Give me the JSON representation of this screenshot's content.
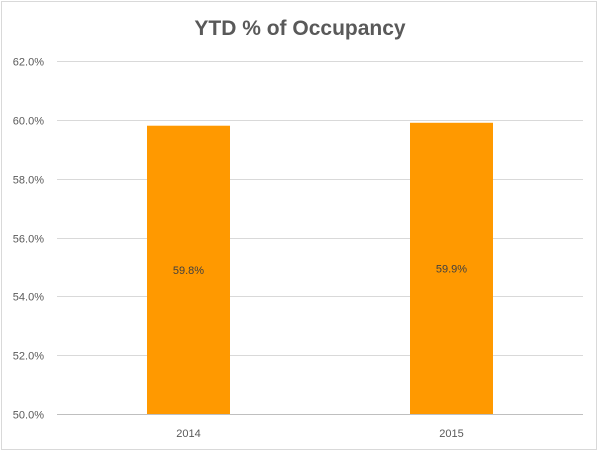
{
  "chart_data": {
    "type": "bar",
    "title": "YTD % of Occupancy",
    "categories": [
      "2014",
      "2015"
    ],
    "values": [
      59.8,
      59.9
    ],
    "data_labels": [
      "59.8%",
      "59.9%"
    ],
    "ylim": [
      50.0,
      62.0
    ],
    "yticks": [
      50.0,
      52.0,
      54.0,
      56.0,
      58.0,
      60.0,
      62.0
    ],
    "ytick_labels": [
      "50.0%",
      "52.0%",
      "54.0%",
      "56.0%",
      "58.0%",
      "60.0%",
      "62.0%"
    ],
    "xlabel": "",
    "ylabel": "",
    "grid": true,
    "legend": "none",
    "colors": {
      "bar": "#ff9900",
      "grid": "#d9d9d9",
      "axis": "#bfbfbf"
    }
  }
}
